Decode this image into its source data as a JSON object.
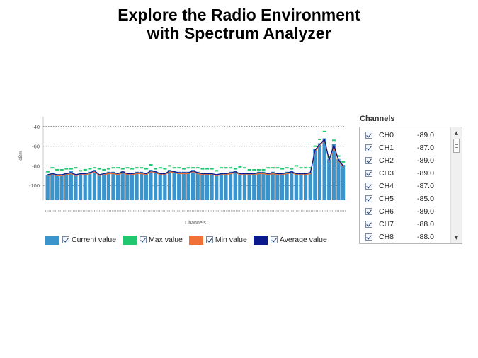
{
  "title": {
    "line1": "Explore the Radio Environment",
    "line2": "with Spectrum Analyzer"
  },
  "chart_data": {
    "type": "bar",
    "ylabel": "dBm",
    "xlabel": "Channels",
    "ylim": [
      -115,
      -30
    ],
    "yticks": [
      -40,
      -60,
      -80,
      -100
    ],
    "grid": "dotted horizontal",
    "x": [
      0,
      1,
      2,
      3,
      4,
      5,
      6,
      7,
      8,
      9,
      10,
      11,
      12,
      13,
      14,
      15,
      16,
      17,
      18,
      19,
      20,
      21,
      22,
      23,
      24,
      25,
      26,
      27,
      28,
      29,
      30,
      31,
      32,
      33,
      34,
      35,
      36,
      37,
      38,
      39,
      40,
      41,
      42,
      43,
      44,
      45,
      46,
      47,
      48,
      49,
      50,
      51,
      52,
      53,
      54,
      55,
      56,
      57,
      58,
      59,
      60,
      61,
      62,
      63
    ],
    "series": [
      {
        "name": "Current value",
        "color": "#3b95cc",
        "values": [
          -89,
          -87,
          -89,
          -89,
          -87,
          -85,
          -89,
          -88,
          -88,
          -86,
          -84,
          -89,
          -88,
          -86,
          -86,
          -88,
          -85,
          -87,
          -88,
          -86,
          -86,
          -87,
          -84,
          -85,
          -87,
          -88,
          -84,
          -85,
          -86,
          -86,
          -86,
          -84,
          -86,
          -87,
          -88,
          -88,
          -89,
          -87,
          -87,
          -86,
          -85,
          -88,
          -88,
          -88,
          -87,
          -86,
          -86,
          -87,
          -86,
          -88,
          -87,
          -86,
          -85,
          -88,
          -88,
          -87,
          -86,
          -63,
          -57,
          -52,
          -73,
          -58,
          -73,
          -79
        ]
      },
      {
        "name": "Max value",
        "color": "#1fc86e",
        "values": [
          -86,
          -82,
          -84,
          -84,
          -83,
          -83,
          -82,
          -85,
          -84,
          -83,
          -82,
          -83,
          -84,
          -83,
          -82,
          -82,
          -83,
          -82,
          -83,
          -82,
          -82,
          -83,
          -79,
          -83,
          -82,
          -83,
          -80,
          -82,
          -82,
          -83,
          -82,
          -82,
          -82,
          -83,
          -83,
          -83,
          -85,
          -82,
          -82,
          -82,
          -83,
          -81,
          -82,
          -84,
          -84,
          -84,
          -84,
          -82,
          -82,
          -82,
          -83,
          -82,
          -83,
          -80,
          -82,
          -82,
          -82,
          -60,
          -53,
          -45,
          -71,
          -54,
          -70,
          -76
        ]
      },
      {
        "name": "Min value",
        "color": "#f07038",
        "values": [
          -90,
          -89,
          -90,
          -90,
          -89,
          -88,
          -90,
          -89,
          -89,
          -88,
          -86,
          -90,
          -89,
          -88,
          -88,
          -89,
          -87,
          -89,
          -89,
          -88,
          -88,
          -89,
          -86,
          -87,
          -89,
          -89,
          -86,
          -87,
          -88,
          -88,
          -88,
          -86,
          -88,
          -89,
          -89,
          -89,
          -90,
          -89,
          -89,
          -88,
          -87,
          -89,
          -89,
          -89,
          -89,
          -88,
          -88,
          -89,
          -88,
          -89,
          -89,
          -88,
          -87,
          -89,
          -89,
          -89,
          -88,
          -65,
          -59,
          -54,
          -75,
          -61,
          -75,
          -81
        ]
      },
      {
        "name": "Average value",
        "color": "#0a1a8c",
        "values": [
          -89,
          -88,
          -89,
          -89,
          -88,
          -87,
          -89,
          -88,
          -88,
          -87,
          -85,
          -89,
          -88,
          -87,
          -87,
          -88,
          -86,
          -88,
          -88,
          -87,
          -87,
          -88,
          -85,
          -86,
          -88,
          -88,
          -85,
          -86,
          -87,
          -87,
          -87,
          -85,
          -87,
          -88,
          -88,
          -88,
          -89,
          -88,
          -88,
          -87,
          -86,
          -88,
          -88,
          -88,
          -88,
          -87,
          -87,
          -88,
          -87,
          -88,
          -88,
          -87,
          -86,
          -88,
          -88,
          -88,
          -87,
          -64,
          -58,
          -53,
          -74,
          -59,
          -74,
          -80
        ]
      }
    ]
  },
  "legend": [
    {
      "label": "Current value",
      "color": "#3b95cc"
    },
    {
      "label": "Max value",
      "color": "#1fc86e"
    },
    {
      "label": "Min value",
      "color": "#f07038"
    },
    {
      "label": "Average value",
      "color": "#0a1a8c"
    }
  ],
  "channels": {
    "title": "Channels",
    "items": [
      {
        "name": "CH0",
        "value": "-89.0"
      },
      {
        "name": "CH1",
        "value": "-87.0"
      },
      {
        "name": "CH2",
        "value": "-89.0"
      },
      {
        "name": "CH3",
        "value": "-89.0"
      },
      {
        "name": "CH4",
        "value": "-87.0"
      },
      {
        "name": "CH5",
        "value": "-85.0"
      },
      {
        "name": "CH6",
        "value": "-89.0"
      },
      {
        "name": "CH7",
        "value": "-88.0"
      },
      {
        "name": "CH8",
        "value": "-88.0"
      }
    ]
  }
}
